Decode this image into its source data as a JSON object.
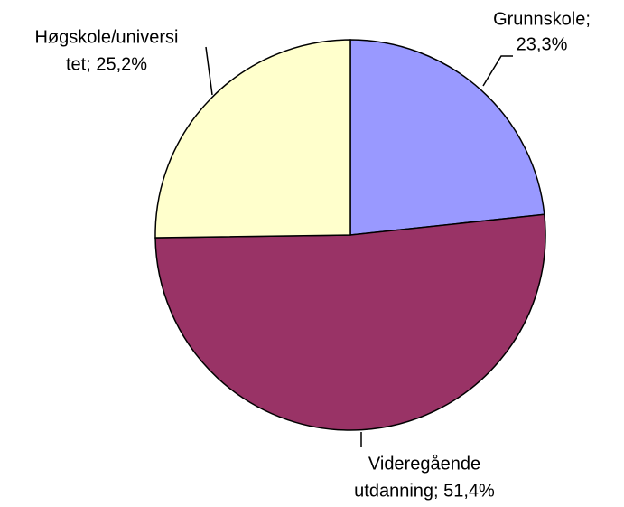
{
  "chart_data": {
    "type": "pie",
    "labels": [
      [
        "Grunnskole;",
        "23,3%"
      ],
      [
        "Videregående",
        "utdanning; 51,4%"
      ],
      [
        "Høgskole/universi",
        "tet; 25,2%"
      ]
    ],
    "values": [
      23.3,
      51.4,
      25.2
    ],
    "colors": [
      "#9999ff",
      "#993366",
      "#ffffcc"
    ]
  }
}
